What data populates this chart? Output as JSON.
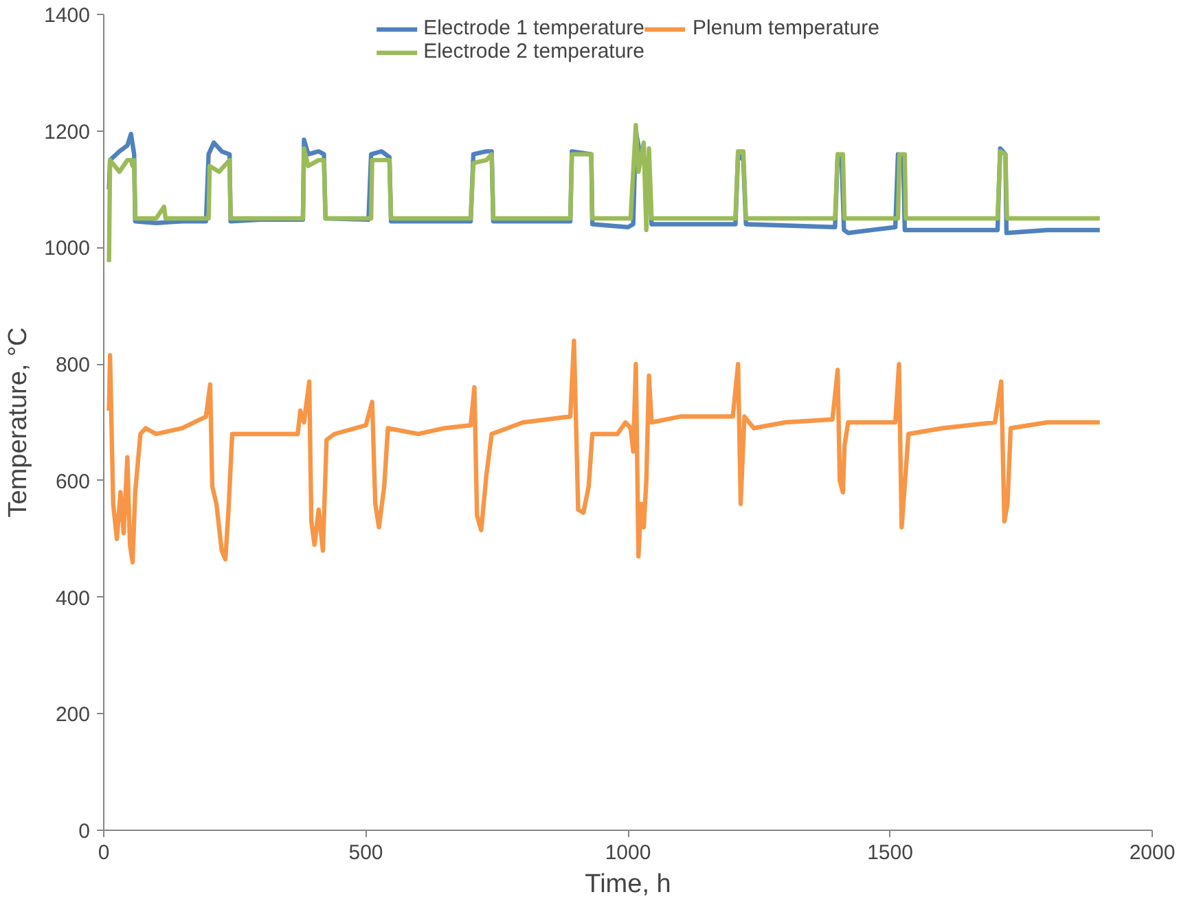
{
  "chart_data": {
    "type": "line",
    "xlabel": "Time, h",
    "ylabel": "Temperature, °C",
    "xlim": [
      0,
      2000
    ],
    "ylim": [
      0,
      1400
    ],
    "xticks": [
      0,
      500,
      1000,
      1500,
      2000
    ],
    "yticks": [
      0,
      200,
      400,
      600,
      800,
      1000,
      1200,
      1400
    ],
    "grid": false,
    "legend": "top",
    "marker": "none",
    "line_style": "solid",
    "series": [
      {
        "name": "Electrode 1 temperature",
        "color": "#4f81bd",
        "x": [
          10,
          12,
          30,
          45,
          52,
          58,
          60,
          100,
          150,
          195,
          200,
          210,
          225,
          240,
          242,
          300,
          380,
          382,
          390,
          410,
          420,
          423,
          505,
          510,
          530,
          545,
          548,
          700,
          705,
          730,
          740,
          743,
          890,
          893,
          930,
          932,
          1000,
          1010,
          1015,
          1025,
          1035,
          1040,
          1045,
          1205,
          1210,
          1220,
          1225,
          1395,
          1400,
          1408,
          1412,
          1420,
          1510,
          1515,
          1525,
          1528,
          1705,
          1710,
          1720,
          1722,
          1800,
          1900
        ],
        "values": [
          1100,
          1150,
          1165,
          1175,
          1195,
          1160,
          1045,
          1042,
          1045,
          1045,
          1160,
          1180,
          1165,
          1160,
          1045,
          1048,
          1048,
          1185,
          1160,
          1165,
          1160,
          1050,
          1048,
          1160,
          1165,
          1155,
          1045,
          1045,
          1160,
          1165,
          1165,
          1045,
          1045,
          1165,
          1160,
          1040,
          1035,
          1040,
          1200,
          1150,
          1140,
          1150,
          1040,
          1040,
          1160,
          1150,
          1040,
          1035,
          1160,
          1140,
          1030,
          1025,
          1035,
          1160,
          1155,
          1030,
          1030,
          1170,
          1160,
          1025,
          1030,
          1030
        ]
      },
      {
        "name": "Electrode 2 temperature",
        "color": "#9bbb59",
        "x": [
          10,
          12,
          30,
          45,
          52,
          55,
          58,
          60,
          100,
          115,
          118,
          200,
          202,
          220,
          240,
          242,
          380,
          382,
          390,
          410,
          420,
          423,
          510,
          512,
          545,
          548,
          700,
          705,
          730,
          740,
          743,
          890,
          893,
          930,
          932,
          1005,
          1015,
          1020,
          1030,
          1035,
          1040,
          1045,
          1205,
          1210,
          1220,
          1225,
          1395,
          1400,
          1410,
          1413,
          1515,
          1518,
          1528,
          1530,
          1705,
          1710,
          1720,
          1723,
          1900
        ],
        "values": [
          975,
          1150,
          1130,
          1150,
          1150,
          1140,
          1150,
          1050,
          1050,
          1070,
          1050,
          1050,
          1140,
          1130,
          1150,
          1050,
          1050,
          1170,
          1140,
          1150,
          1150,
          1050,
          1050,
          1150,
          1150,
          1050,
          1050,
          1145,
          1150,
          1160,
          1050,
          1050,
          1160,
          1160,
          1050,
          1050,
          1210,
          1130,
          1180,
          1030,
          1170,
          1050,
          1050,
          1165,
          1165,
          1050,
          1050,
          1160,
          1160,
          1050,
          1050,
          1160,
          1160,
          1050,
          1050,
          1165,
          1160,
          1050,
          1050
        ]
      },
      {
        "name": "Plenum temperature",
        "color": "#f79646",
        "x": [
          10,
          12,
          18,
          25,
          32,
          38,
          45,
          50,
          55,
          60,
          70,
          80,
          100,
          150,
          195,
          203,
          207,
          215,
          225,
          232,
          238,
          245,
          300,
          370,
          375,
          382,
          392,
          396,
          402,
          410,
          418,
          425,
          440,
          500,
          512,
          518,
          525,
          535,
          542,
          600,
          650,
          700,
          707,
          712,
          720,
          730,
          740,
          800,
          890,
          897,
          905,
          915,
          925,
          932,
          980,
          995,
          1005,
          1010,
          1015,
          1020,
          1025,
          1030,
          1035,
          1040,
          1045,
          1100,
          1200,
          1210,
          1215,
          1222,
          1240,
          1300,
          1390,
          1400,
          1404,
          1410,
          1413,
          1420,
          1510,
          1517,
          1522,
          1527,
          1535,
          1600,
          1700,
          1712,
          1718,
          1724,
          1730,
          1800,
          1900
        ],
        "values": [
          720,
          815,
          560,
          500,
          580,
          510,
          640,
          490,
          460,
          580,
          680,
          690,
          680,
          690,
          710,
          765,
          590,
          560,
          480,
          465,
          550,
          680,
          680,
          680,
          720,
          700,
          770,
          530,
          490,
          550,
          480,
          670,
          680,
          695,
          735,
          560,
          520,
          590,
          690,
          680,
          690,
          695,
          760,
          540,
          515,
          610,
          680,
          700,
          710,
          840,
          550,
          545,
          590,
          680,
          680,
          700,
          690,
          650,
          800,
          470,
          560,
          520,
          600,
          780,
          700,
          710,
          710,
          800,
          560,
          710,
          690,
          700,
          705,
          790,
          600,
          580,
          660,
          700,
          700,
          800,
          520,
          580,
          680,
          690,
          700,
          770,
          530,
          560,
          690,
          700,
          700
        ]
      }
    ]
  }
}
